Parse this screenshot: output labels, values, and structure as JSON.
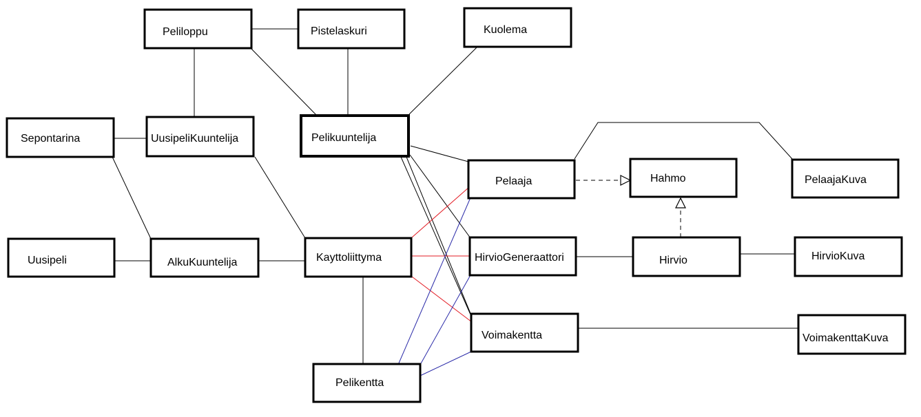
{
  "classes": {
    "peliloppu": "Peliloppu",
    "pistelaskuri": "Pistelaskuri",
    "kuolema": "Kuolema",
    "sepontarina": "Sepontarina",
    "uusipelikuuntelija": "UusipeliKuuntelija",
    "pelikuuntelija": "Pelikuuntelija",
    "pelaaja": "Pelaaja",
    "hahmo": "Hahmo",
    "pelaajakuva": "PelaajaKuva",
    "uusipeli": "Uusipeli",
    "alkukuuntelija": "AlkuKuuntelija",
    "kayttoliittyma": "Kayttoliittyma",
    "hirviogeneraattori": "HirvioGeneraattori",
    "hirvio": "Hirvio",
    "hirviokuva": "HirvioKuva",
    "voimakentta": "Voimakentta",
    "voimakenttakuva": "VoimakenttaKuva",
    "pelikentta": "Pelikentta"
  },
  "colors": {
    "box_border": "#000000",
    "association": "#000000",
    "red_link": "#e31b23",
    "blue_link": "#2a2aa8"
  },
  "relations": [
    {
      "from": "peliloppu",
      "to": "pistelaskuri",
      "style": "association"
    },
    {
      "from": "peliloppu",
      "to": "uusipelikuuntelija",
      "style": "association"
    },
    {
      "from": "peliloppu",
      "to": "pelikuuntelija",
      "style": "association"
    },
    {
      "from": "pistelaskuri",
      "to": "pelikuuntelija",
      "style": "association"
    },
    {
      "from": "kuolema",
      "to": "pelikuuntelija",
      "style": "association"
    },
    {
      "from": "sepontarina",
      "to": "uusipelikuuntelija",
      "style": "association"
    },
    {
      "from": "sepontarina",
      "to": "alkukuuntelija",
      "style": "association"
    },
    {
      "from": "uusipelikuuntelija",
      "to": "kayttoliittyma",
      "style": "association"
    },
    {
      "from": "uusipeli",
      "to": "alkukuuntelija",
      "style": "association"
    },
    {
      "from": "alkukuuntelija",
      "to": "kayttoliittyma",
      "style": "association"
    },
    {
      "from": "kayttoliittyma",
      "to": "pelikentta",
      "style": "association"
    },
    {
      "from": "pelikuuntelija",
      "to": "pelaaja",
      "style": "association"
    },
    {
      "from": "pelikuuntelija",
      "to": "hirviogeneraattori",
      "style": "association"
    },
    {
      "from": "pelikuuntelija",
      "to": "voimakentta",
      "style": "association"
    },
    {
      "from": "pelikuuntelija",
      "to": "pelikentta",
      "style": "association"
    },
    {
      "from": "pelaaja",
      "to": "pelaajakuva",
      "style": "association"
    },
    {
      "from": "pelaaja",
      "to": "hahmo",
      "style": "realization"
    },
    {
      "from": "hirvio",
      "to": "hahmo",
      "style": "realization"
    },
    {
      "from": "hirviogeneraattori",
      "to": "hirvio",
      "style": "association"
    },
    {
      "from": "hirvio",
      "to": "hirviokuva",
      "style": "association"
    },
    {
      "from": "voimakentta",
      "to": "voimakenttakuva",
      "style": "association"
    },
    {
      "from": "kayttoliittyma",
      "to": "pelaaja",
      "style": "red"
    },
    {
      "from": "kayttoliittyma",
      "to": "hirviogeneraattori",
      "style": "red"
    },
    {
      "from": "kayttoliittyma",
      "to": "voimakentta",
      "style": "red"
    },
    {
      "from": "pelikentta",
      "to": "pelaaja",
      "style": "blue"
    },
    {
      "from": "pelikentta",
      "to": "hirviogeneraattori",
      "style": "blue"
    },
    {
      "from": "pelikentta",
      "to": "voimakentta",
      "style": "blue"
    }
  ]
}
